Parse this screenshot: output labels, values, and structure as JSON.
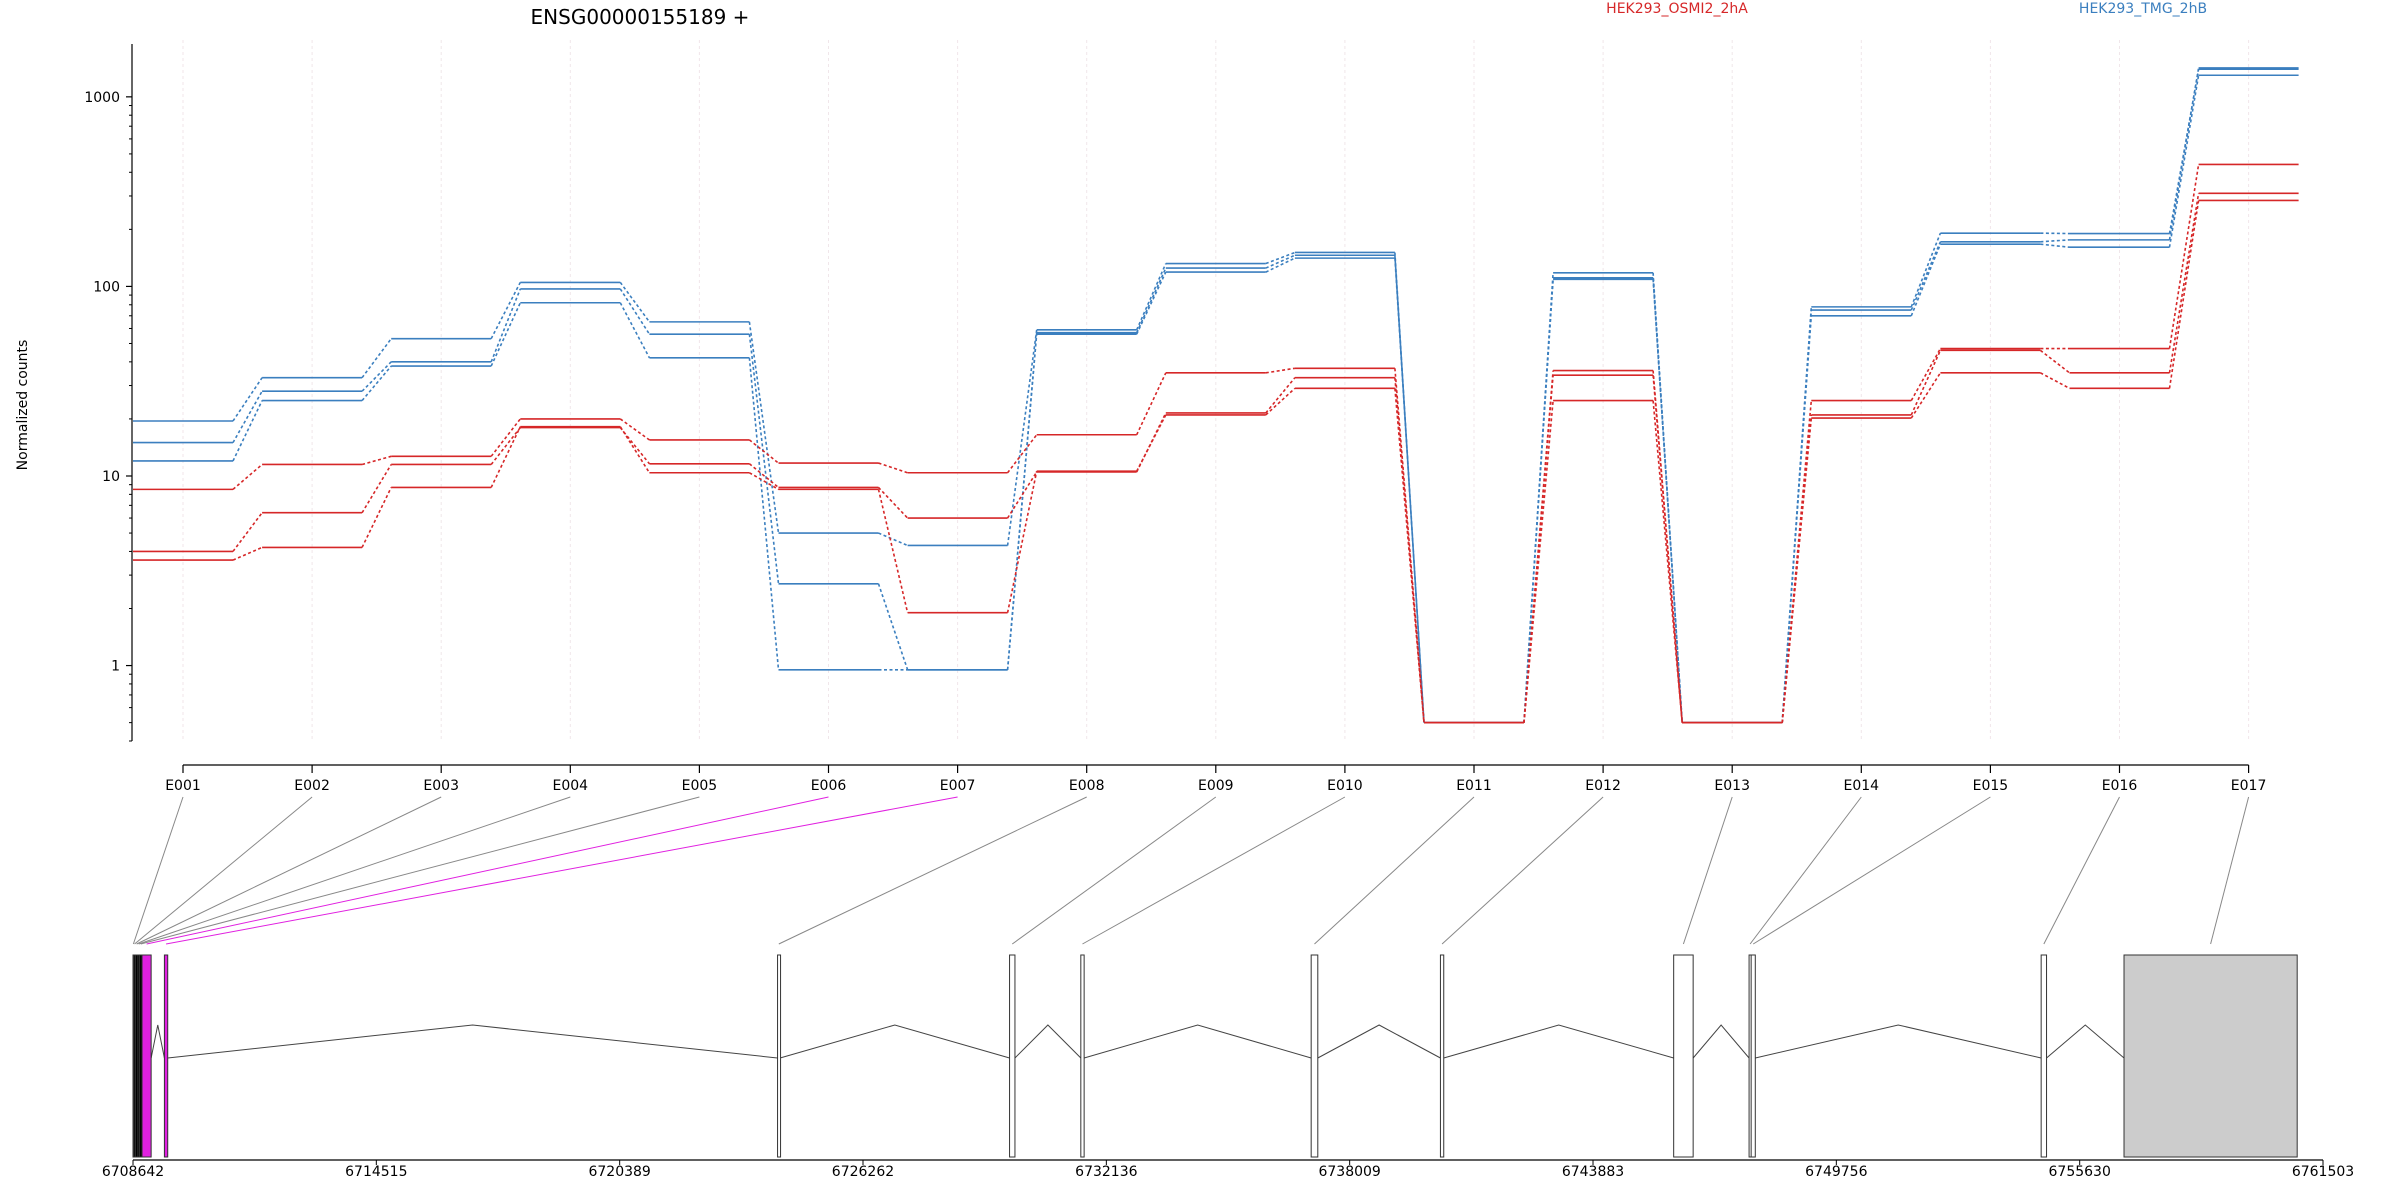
{
  "chart_data": {
    "type": "line",
    "title": "ENSG00000155189 +",
    "ylabel": "Normalized counts",
    "yscale": "log",
    "ylim": [
      0.4,
      1900
    ],
    "yticks": [
      "1",
      "10",
      "100",
      "1000"
    ],
    "yticks_values": [
      1,
      10,
      100,
      1000
    ],
    "categories": [
      "E001",
      "E002",
      "E003",
      "E004",
      "E005",
      "E006",
      "E007",
      "E008",
      "E009",
      "E010",
      "E011",
      "E012",
      "E013",
      "E014",
      "E015",
      "E016",
      "E017"
    ],
    "legend": [
      {
        "name": "HEK293_OSMI2_2hA",
        "color": "#d62728"
      },
      {
        "name": "HEK293_TMG_2hB",
        "color": "#3b7fbf"
      }
    ],
    "series": [
      {
        "group": "HEK293_TMG_2hB",
        "color": "#3b7fbf",
        "values": [
          19.5,
          33,
          53,
          105,
          65,
          5,
          4.3,
          59,
          132,
          151,
          0.5,
          118,
          0.5,
          78,
          191,
          190,
          1400
        ]
      },
      {
        "group": "HEK293_TMG_2hB",
        "color": "#3b7fbf",
        "values": [
          15,
          28,
          40,
          97,
          56,
          2.7,
          0.95,
          57,
          125,
          146,
          0.5,
          111,
          0.5,
          75,
          172,
          176,
          1420
        ]
      },
      {
        "group": "HEK293_TMG_2hB",
        "color": "#3b7fbf",
        "values": [
          12,
          25,
          38,
          82,
          42,
          0.95,
          0.95,
          56,
          119,
          141,
          0.5,
          109,
          0.5,
          70,
          167,
          161,
          1300
        ]
      },
      {
        "group": "HEK293_OSMI2_2hA",
        "color": "#d62728",
        "values": [
          8.5,
          11.5,
          12.7,
          20,
          15.5,
          11.7,
          10.4,
          16.5,
          35,
          37,
          0.5,
          36,
          0.5,
          25,
          47,
          47,
          440
        ]
      },
      {
        "group": "HEK293_OSMI2_2hA",
        "color": "#d62728",
        "values": [
          4,
          6.4,
          11.5,
          18,
          11.6,
          8.7,
          6,
          10.5,
          21.5,
          33,
          0.5,
          34,
          0.5,
          21,
          46,
          35,
          310
        ]
      },
      {
        "group": "HEK293_OSMI2_2hA",
        "color": "#d62728",
        "values": [
          3.6,
          4.2,
          8.7,
          18.2,
          10.4,
          8.5,
          1.9,
          10.6,
          21,
          29,
          0.5,
          25,
          0.5,
          20.2,
          35,
          29,
          284
        ]
      }
    ],
    "gene_model": {
      "genomic_ticks": [
        "6708642",
        "6714515",
        "6720389",
        "6726262",
        "6732136",
        "6738009",
        "6743883",
        "6749756",
        "6755630",
        "6761503"
      ],
      "genomic_range": [
        6708642,
        6761503
      ],
      "highlight_color": "#e020e0",
      "highlighted_exons": [
        "E006",
        "E007"
      ],
      "exons": [
        {
          "id": "E001",
          "start": 6708642,
          "end": 6708660,
          "fill": "#000000"
        },
        {
          "id": "E002",
          "start": 6708660,
          "end": 6708700,
          "fill": "#000000"
        },
        {
          "id": "E003",
          "start": 6708700,
          "end": 6708760,
          "fill": "#000000"
        },
        {
          "id": "E004",
          "start": 6708760,
          "end": 6708800,
          "fill": "#000000"
        },
        {
          "id": "E005",
          "start": 6708800,
          "end": 6708860,
          "fill": "#000000"
        },
        {
          "id": "E006",
          "start": 6708860,
          "end": 6709080,
          "fill": "#e020e0"
        },
        {
          "id": "E007",
          "start": 6709400,
          "end": 6709480,
          "fill": "#e020e0"
        },
        {
          "id": "E008",
          "start": 6724200,
          "end": 6724260,
          "fill": "#ffffff"
        },
        {
          "id": "E009",
          "start": 6729800,
          "end": 6729930,
          "fill": "#ffffff"
        },
        {
          "id": "E010",
          "start": 6731520,
          "end": 6731600,
          "fill": "#ffffff"
        },
        {
          "id": "E011",
          "start": 6737080,
          "end": 6737240,
          "fill": "#ffffff"
        },
        {
          "id": "E012",
          "start": 6740200,
          "end": 6740280,
          "fill": "#ffffff"
        },
        {
          "id": "E013",
          "start": 6745830,
          "end": 6746300,
          "fill": "#ffffff"
        },
        {
          "id": "E014",
          "start": 6747650,
          "end": 6747700,
          "fill": "#ffffff"
        },
        {
          "id": "E015",
          "start": 6747700,
          "end": 6747800,
          "fill": "#ffffff"
        },
        {
          "id": "E016",
          "start": 6754700,
          "end": 6754830,
          "fill": "#ffffff"
        },
        {
          "id": "E017",
          "start": 6756700,
          "end": 6760880,
          "fill": "#cccccc"
        }
      ]
    }
  }
}
